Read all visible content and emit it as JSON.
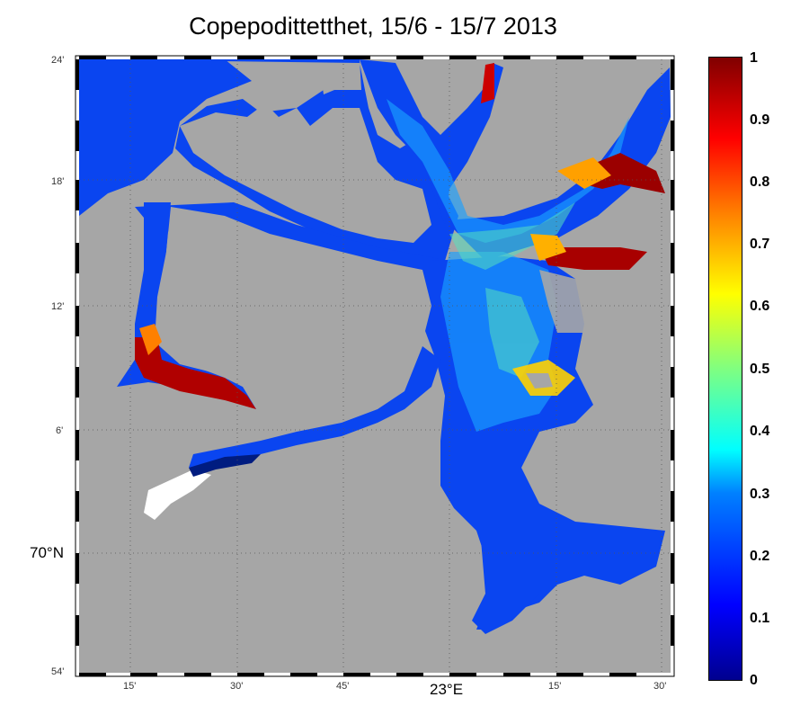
{
  "title": "Copepodittetthet, 15/6 - 15/7 2013",
  "map": {
    "lat_ticks": [
      {
        "label": "24'"
      },
      {
        "label": "18'"
      },
      {
        "label": "12'"
      },
      {
        "label": "6'"
      },
      {
        "label": "70°N",
        "major": true
      },
      {
        "label": "54'"
      }
    ],
    "lon_ticks": [
      {
        "label": "15'"
      },
      {
        "label": "30'"
      },
      {
        "label": "45'"
      },
      {
        "label": "23°E",
        "major": true
      },
      {
        "label": "15'"
      },
      {
        "label": "30'"
      }
    ],
    "colors": {
      "land": "#a6a6a6",
      "frame_dark": "#000000",
      "frame_light": "#ffffff"
    }
  },
  "colorbar": {
    "range": [
      0,
      1
    ],
    "colormap": "jet",
    "ticks": [
      "0",
      "0.1",
      "0.2",
      "0.3",
      "0.4",
      "0.5",
      "0.6",
      "0.7",
      "0.8",
      "0.9",
      "1"
    ]
  }
}
